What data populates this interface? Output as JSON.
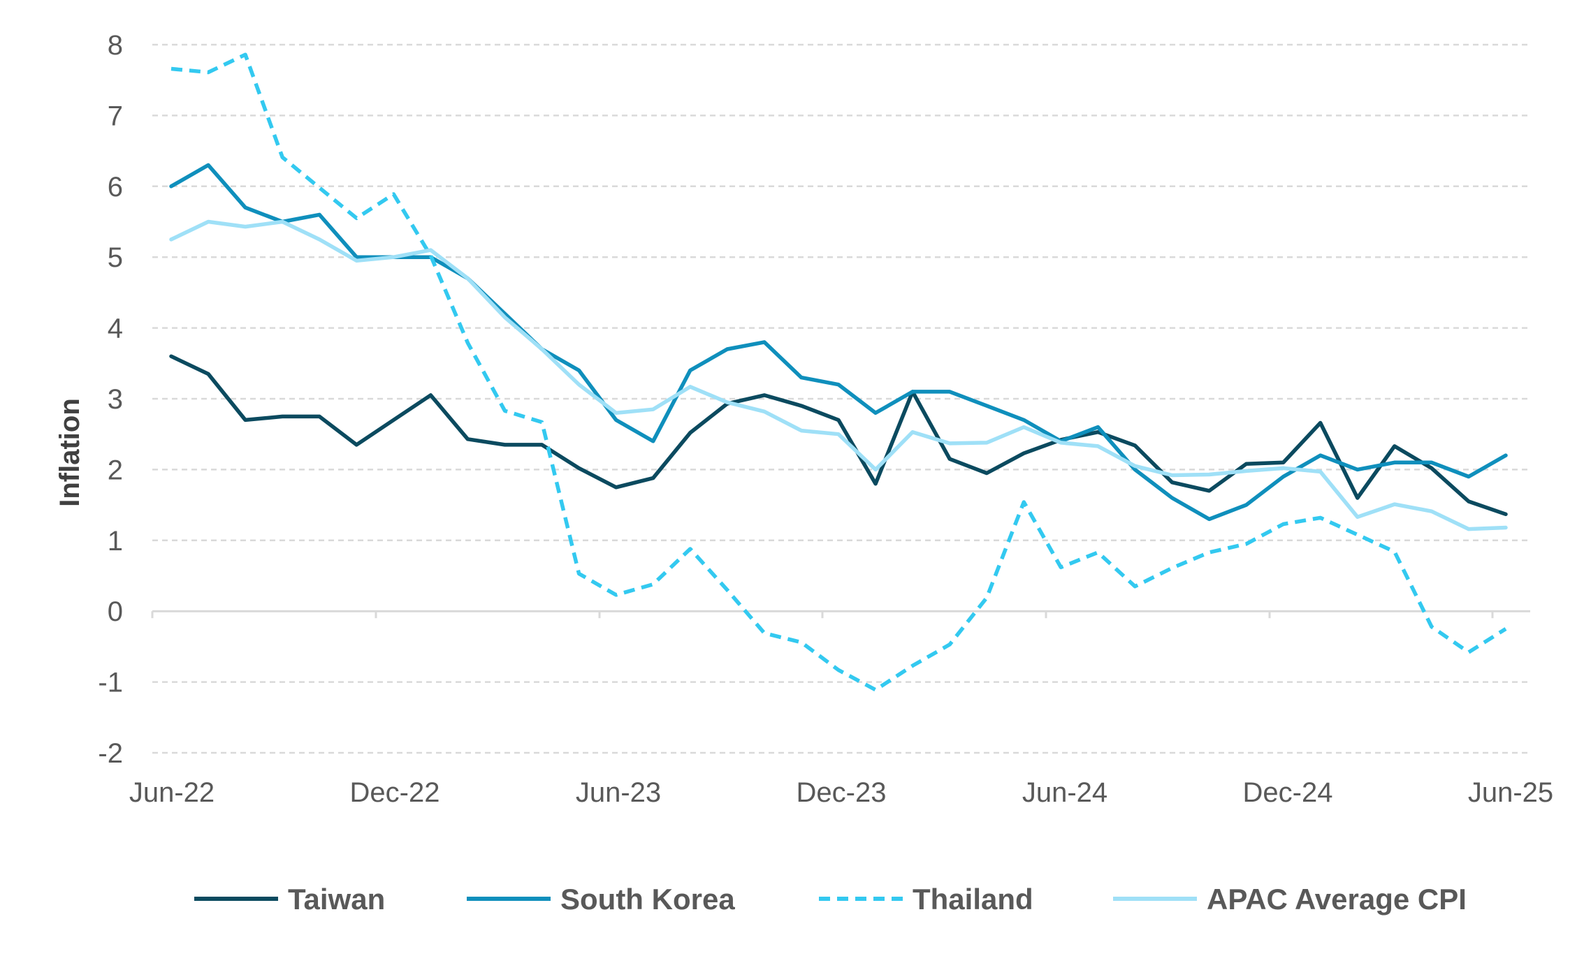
{
  "chart_data": {
    "type": "line",
    "title": "",
    "xlabel": "",
    "ylabel": "Inflation",
    "ylim": [
      -2,
      8
    ],
    "yticks": [
      "8",
      "7",
      "6",
      "5",
      "4",
      "3",
      "2",
      "1",
      "0",
      "-1",
      "-2"
    ],
    "x_tick_labels": [
      "Jun-22",
      "Dec-22",
      "Jun-23",
      "Dec-23",
      "Jun-24",
      "Dec-24",
      "Jun-25"
    ],
    "x": [
      "Jun-22",
      "Jul-22",
      "Aug-22",
      "Sep-22",
      "Oct-22",
      "Nov-22",
      "Dec-22",
      "Jan-23",
      "Feb-23",
      "Mar-23",
      "Apr-23",
      "May-23",
      "Jun-23",
      "Jul-23",
      "Aug-23",
      "Sep-23",
      "Oct-23",
      "Nov-23",
      "Dec-23",
      "Jan-24",
      "Feb-24",
      "Mar-24",
      "Apr-24",
      "May-24",
      "Jun-24",
      "Jul-24",
      "Aug-24",
      "Sep-24",
      "Oct-24",
      "Nov-24",
      "Dec-24",
      "Jan-25",
      "Feb-25",
      "Mar-25",
      "Apr-25",
      "May-25",
      "Jun-25"
    ],
    "grid": true,
    "legend_position": "bottom",
    "series": [
      {
        "name": "Taiwan",
        "color": "#0b4a5f",
        "dashed": false,
        "values": [
          3.6,
          3.35,
          2.7,
          2.75,
          2.75,
          2.35,
          2.7,
          3.05,
          2.43,
          2.35,
          2.35,
          2.02,
          1.75,
          1.88,
          2.52,
          2.93,
          3.05,
          2.9,
          2.7,
          1.8,
          3.1,
          2.15,
          1.95,
          2.23,
          2.42,
          2.53,
          2.34,
          1.82,
          1.7,
          2.08,
          2.1,
          2.66,
          1.6,
          2.33,
          2.02,
          1.55,
          1.37
        ]
      },
      {
        "name": "South Korea",
        "color": "#0f8fbc",
        "dashed": false,
        "values": [
          6.0,
          6.3,
          5.7,
          5.5,
          5.6,
          5.0,
          5.0,
          5.0,
          4.7,
          4.2,
          3.7,
          3.4,
          2.7,
          2.4,
          3.4,
          3.7,
          3.8,
          3.3,
          3.2,
          2.8,
          3.1,
          3.1,
          2.9,
          2.7,
          2.4,
          2.6,
          2.0,
          1.6,
          1.3,
          1.5,
          1.9,
          2.2,
          2.0,
          2.1,
          2.1,
          1.9,
          2.2
        ]
      },
      {
        "name": "Thailand",
        "color": "#33c9f0",
        "dashed": true,
        "values": [
          7.66,
          7.61,
          7.86,
          6.41,
          5.98,
          5.55,
          5.89,
          5.02,
          3.79,
          2.83,
          2.67,
          0.53,
          0.23,
          0.38,
          0.88,
          0.3,
          -0.31,
          -0.44,
          -0.83,
          -1.11,
          -0.77,
          -0.47,
          0.19,
          1.54,
          0.62,
          0.83,
          0.35,
          0.61,
          0.83,
          0.95,
          1.23,
          1.32,
          1.08,
          0.84,
          -0.22,
          -0.58,
          -0.25
        ]
      },
      {
        "name": "APAC Average CPI",
        "color": "#9fe0f7",
        "dashed": false,
        "values": [
          5.25,
          5.5,
          5.43,
          5.5,
          5.25,
          4.95,
          5.0,
          5.1,
          4.7,
          4.15,
          3.7,
          3.2,
          2.8,
          2.85,
          3.17,
          2.95,
          2.82,
          2.55,
          2.5,
          2.0,
          2.53,
          2.37,
          2.38,
          2.6,
          2.38,
          2.33,
          2.05,
          1.92,
          1.93,
          1.98,
          2.02,
          1.97,
          1.33,
          1.51,
          1.41,
          1.16,
          1.18
        ]
      }
    ]
  }
}
